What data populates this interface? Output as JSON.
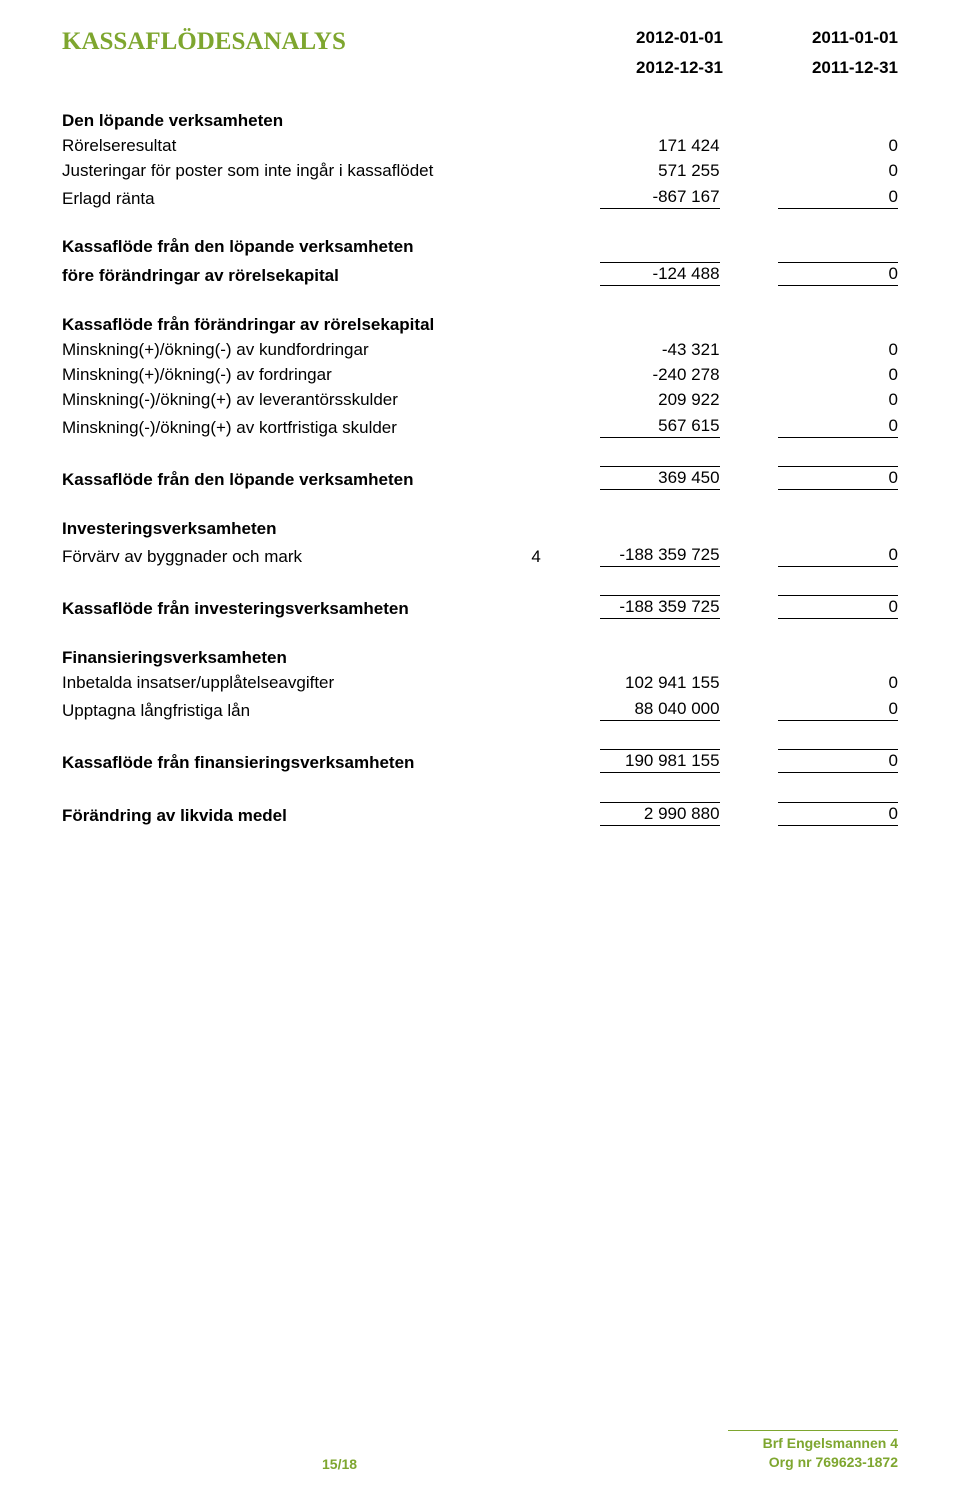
{
  "title": "KASSAFLÖDESANALYS",
  "dates": {
    "col1_start": "2012-01-01",
    "col1_end": "2012-12-31",
    "col2_start": "2011-01-01",
    "col2_end": "2011-12-31"
  },
  "sections": {
    "operating_running": {
      "header": "Den löpande verksamheten",
      "lines": {
        "rorelseresultat": {
          "label": "Rörelseresultat",
          "v1": "171 424",
          "v2": "0"
        },
        "justeringar": {
          "label": "Justeringar för poster som inte ingår i kassaflödet",
          "v1": "571 255",
          "v2": "0"
        },
        "erlagd_ranta": {
          "label": "Erlagd ränta",
          "v1": "-867 167",
          "v2": "0"
        }
      }
    },
    "before_wc": {
      "label": "Kassaflöde från den löpande verksamheten före förändringar av rörelsekapital",
      "label_line1": "Kassaflöde från den löpande verksamheten",
      "label_line2": "före förändringar av rörelsekapital",
      "v1": "-124 488",
      "v2": "0"
    },
    "wc_changes": {
      "header": "Kassaflöde från förändringar av rörelsekapital",
      "lines": {
        "kundfordringar": {
          "label": "Minskning(+)/ökning(-) av kundfordringar",
          "v1": "-43 321",
          "v2": "0"
        },
        "fordringar": {
          "label": "Minskning(+)/ökning(-) av fordringar",
          "v1": "-240 278",
          "v2": "0"
        },
        "leverantor": {
          "label": "Minskning(-)/ökning(+) av leverantörsskulder",
          "v1": "209 922",
          "v2": "0"
        },
        "kortfristiga": {
          "label": "Minskning(-)/ökning(+) av kortfristiga skulder",
          "v1": "567 615",
          "v2": "0"
        }
      }
    },
    "operating_total": {
      "label": "Kassaflöde från den löpande verksamheten",
      "v1": "369 450",
      "v2": "0"
    },
    "investing": {
      "header": "Investeringsverksamheten",
      "lines": {
        "forvarv": {
          "label": "Förvärv av byggnader och mark",
          "note": "4",
          "v1": "-188 359 725",
          "v2": "0"
        }
      },
      "total": {
        "label": "Kassaflöde från investeringsverksamheten",
        "v1": "-188 359 725",
        "v2": "0"
      }
    },
    "financing": {
      "header": "Finansieringsverksamheten",
      "lines": {
        "insatser": {
          "label": "Inbetalda insatser/upplåtelseavgifter",
          "v1": "102 941 155",
          "v2": "0"
        },
        "langlan": {
          "label": "Upptagna långfristiga lån",
          "v1": "88 040 000",
          "v2": "0"
        }
      },
      "total": {
        "label": "Kassaflöde från finansieringsverksamheten",
        "v1": "190 981 155",
        "v2": "0"
      }
    },
    "change_liquid": {
      "label": "Förändring av likvida medel",
      "v1": "2 990 880",
      "v2": "0"
    }
  },
  "footer": {
    "page": "15/18",
    "org_name": "Brf Engelsmannen 4",
    "org_nr": "Org nr 769623-1872"
  },
  "colors": {
    "accent": "#7ea62f",
    "text": "#000000",
    "background": "#ffffff"
  }
}
